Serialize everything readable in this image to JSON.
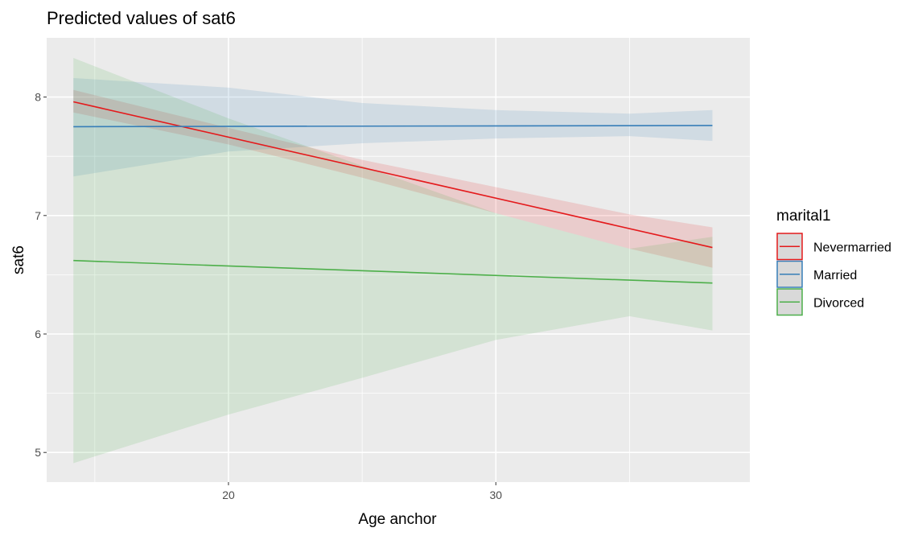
{
  "chart_data": {
    "type": "line",
    "title": "Predicted values of sat6",
    "xlabel": "Age anchor",
    "ylabel": "sat6",
    "xlim": [
      13.2,
      39.5
    ],
    "ylim": [
      4.75,
      8.5
    ],
    "x_ticks": [
      20,
      30
    ],
    "y_ticks": [
      5,
      6,
      7,
      8
    ],
    "x_ticks_label": [
      "20",
      "30"
    ],
    "y_ticks_label": [
      "5",
      "6",
      "7",
      "8"
    ],
    "grid": true,
    "legend": {
      "title": "marital1",
      "position": "right"
    },
    "series": [
      {
        "name": "Nevermarried",
        "color": "#e41a1c",
        "x": [
          14.2,
          38.1
        ],
        "y": [
          7.96,
          6.73
        ],
        "ci_x": [
          14.2,
          20,
          25,
          30,
          35,
          38.1
        ],
        "ci_lower": [
          7.87,
          7.6,
          7.32,
          7.02,
          6.72,
          6.56
        ],
        "ci_upper": [
          8.06,
          7.74,
          7.47,
          7.24,
          7.01,
          6.9
        ]
      },
      {
        "name": "Married",
        "color": "#377eb8",
        "x": [
          14.2,
          38.1
        ],
        "y": [
          7.75,
          7.76
        ],
        "ci_x": [
          14.2,
          20,
          25,
          30,
          35,
          38.1
        ],
        "ci_lower": [
          7.33,
          7.54,
          7.61,
          7.65,
          7.67,
          7.63
        ],
        "ci_upper": [
          8.16,
          8.08,
          7.95,
          7.89,
          7.86,
          7.89
        ]
      },
      {
        "name": "Divorced",
        "color": "#4daf4a",
        "x": [
          14.2,
          38.1
        ],
        "y": [
          6.62,
          6.43
        ],
        "ci_x": [
          14.2,
          20,
          25,
          30,
          35,
          38.1
        ],
        "ci_lower": [
          4.91,
          5.32,
          5.63,
          5.95,
          6.15,
          6.03
        ],
        "ci_upper": [
          8.33,
          7.82,
          7.42,
          7.02,
          6.72,
          6.82
        ]
      }
    ]
  }
}
